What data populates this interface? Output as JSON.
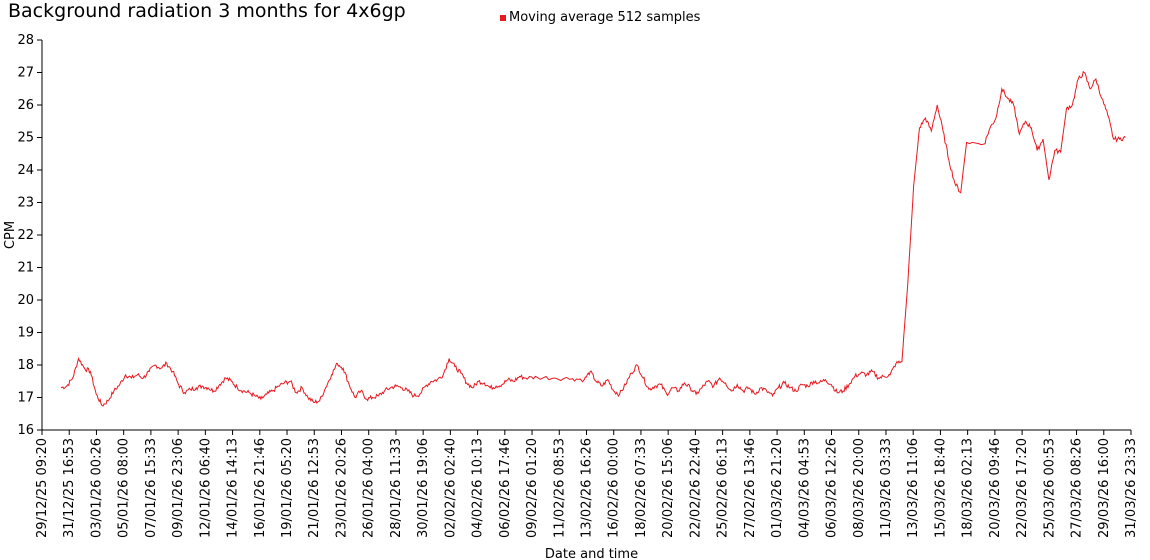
{
  "colors": {
    "series": "#e8191f",
    "axis": "#000000",
    "background": "#ffffff"
  },
  "chart_data": {
    "type": "line",
    "title": "Background radiation 3 months for 4x6gp",
    "xlabel": "Date and time",
    "ylabel": "CPM",
    "ylim": [
      16,
      28
    ],
    "yticks": [
      16,
      17,
      18,
      19,
      20,
      21,
      22,
      23,
      24,
      25,
      26,
      27,
      28
    ],
    "xlim": [
      "29/12/25 09:20",
      "31/03/26 23:33"
    ],
    "xticks": [
      "29/12/25 09:20",
      "31/12/25 16:53",
      "03/01/26 00:26",
      "05/01/26 08:00",
      "07/01/26 15:33",
      "09/01/26 23:06",
      "12/01/26 06:40",
      "14/01/26 14:13",
      "16/01/26 21:46",
      "19/01/26 05:20",
      "21/01/26 12:53",
      "23/01/26 20:26",
      "26/01/26 04:00",
      "28/01/26 11:33",
      "30/01/26 19:06",
      "02/02/26 02:40",
      "04/02/26 10:13",
      "06/02/26 17:46",
      "09/02/26 01:20",
      "11/02/26 08:53",
      "13/02/26 16:26",
      "16/02/26 00:00",
      "18/02/26 07:33",
      "20/02/26 15:06",
      "22/02/26 22:40",
      "25/02/26 06:13",
      "27/02/26 13:46",
      "01/03/26 21:20",
      "04/03/26 04:53",
      "06/03/26 12:26",
      "08/03/26 20:00",
      "11/03/26 03:33",
      "13/03/26 11:06",
      "15/03/26 18:40",
      "18/03/26 02:13",
      "20/03/26 09:46",
      "22/03/26 17:20",
      "25/03/26 00:53",
      "27/03/26 08:26",
      "29/03/26 16:00",
      "31/03/26 23:33"
    ],
    "grid": false,
    "legend_position": "top-center",
    "series": [
      {
        "name": "Moving average 512 samples",
        "points": [
          [
            "31/12/25 00:00",
            17.3
          ],
          [
            "31/12/25 12:00",
            17.35
          ],
          [
            "01/01/26 00:00",
            17.6
          ],
          [
            "01/01/26 12:00",
            18.2
          ],
          [
            "02/01/26 00:00",
            17.9
          ],
          [
            "02/01/26 12:00",
            17.8
          ],
          [
            "03/01/26 00:00",
            17.1
          ],
          [
            "03/01/26 12:00",
            16.75
          ],
          [
            "04/01/26 00:00",
            16.9
          ],
          [
            "04/01/26 12:00",
            17.2
          ],
          [
            "05/01/26 00:00",
            17.4
          ],
          [
            "05/01/26 12:00",
            17.7
          ],
          [
            "06/01/26 00:00",
            17.6
          ],
          [
            "06/01/26 12:00",
            17.7
          ],
          [
            "07/01/26 00:00",
            17.6
          ],
          [
            "07/01/26 12:00",
            17.8
          ],
          [
            "08/01/26 00:00",
            18.0
          ],
          [
            "08/01/26 12:00",
            17.9
          ],
          [
            "09/01/26 00:00",
            18.05
          ],
          [
            "09/01/26 12:00",
            17.8
          ],
          [
            "10/01/26 00:00",
            17.4
          ],
          [
            "10/01/26 12:00",
            17.15
          ],
          [
            "11/01/26 00:00",
            17.25
          ],
          [
            "11/01/26 12:00",
            17.3
          ],
          [
            "12/01/26 00:00",
            17.35
          ],
          [
            "12/01/26 12:00",
            17.3
          ],
          [
            "13/01/26 00:00",
            17.2
          ],
          [
            "13/01/26 12:00",
            17.4
          ],
          [
            "14/01/26 00:00",
            17.6
          ],
          [
            "14/01/26 12:00",
            17.5
          ],
          [
            "15/01/26 00:00",
            17.3
          ],
          [
            "15/01/26 12:00",
            17.2
          ],
          [
            "16/01/26 00:00",
            17.15
          ],
          [
            "16/01/26 12:00",
            17.05
          ],
          [
            "17/01/26 00:00",
            16.95
          ],
          [
            "17/01/26 12:00",
            17.1
          ],
          [
            "18/01/26 00:00",
            17.2
          ],
          [
            "18/01/26 12:00",
            17.35
          ],
          [
            "19/01/26 00:00",
            17.45
          ],
          [
            "19/01/26 12:00",
            17.5
          ],
          [
            "20/01/26 00:00",
            17.15
          ],
          [
            "20/01/26 12:00",
            17.3
          ],
          [
            "21/01/26 00:00",
            17.0
          ],
          [
            "21/01/26 12:00",
            16.85
          ],
          [
            "22/01/26 00:00",
            16.9
          ],
          [
            "22/01/26 12:00",
            17.3
          ],
          [
            "23/01/26 00:00",
            17.7
          ],
          [
            "23/01/26 12:00",
            18.05
          ],
          [
            "24/01/26 00:00",
            17.9
          ],
          [
            "24/01/26 12:00",
            17.4
          ],
          [
            "25/01/26 00:00",
            17.0
          ],
          [
            "25/01/26 12:00",
            17.2
          ],
          [
            "26/01/26 00:00",
            16.95
          ],
          [
            "26/01/26 12:00",
            17.0
          ],
          [
            "27/01/26 00:00",
            17.05
          ],
          [
            "27/01/26 12:00",
            17.2
          ],
          [
            "28/01/26 00:00",
            17.3
          ],
          [
            "28/01/26 12:00",
            17.35
          ],
          [
            "29/01/26 00:00",
            17.3
          ],
          [
            "29/01/26 12:00",
            17.2
          ],
          [
            "30/01/26 00:00",
            17.05
          ],
          [
            "30/01/26 12:00",
            17.1
          ],
          [
            "31/01/26 00:00",
            17.35
          ],
          [
            "31/01/26 12:00",
            17.5
          ],
          [
            "01/02/26 00:00",
            17.55
          ],
          [
            "01/02/26 12:00",
            17.7
          ],
          [
            "02/02/26 00:00",
            18.2
          ],
          [
            "02/02/26 12:00",
            17.95
          ],
          [
            "03/02/26 00:00",
            17.75
          ],
          [
            "03/02/26 12:00",
            17.45
          ],
          [
            "04/02/26 00:00",
            17.3
          ],
          [
            "04/02/26 12:00",
            17.5
          ],
          [
            "05/02/26 00:00",
            17.45
          ],
          [
            "05/02/26 12:00",
            17.3
          ],
          [
            "06/02/26 00:00",
            17.35
          ],
          [
            "06/02/26 12:00",
            17.4
          ],
          [
            "07/02/26 00:00",
            17.55
          ],
          [
            "07/02/26 12:00",
            17.5
          ],
          [
            "08/02/26 00:00",
            17.65
          ],
          [
            "08/02/26 12:00",
            17.6
          ],
          [
            "09/02/26 12:00",
            17.62
          ],
          [
            "11/02/26 00:00",
            17.6
          ],
          [
            "12/02/26 12:00",
            17.58
          ],
          [
            "13/02/26 12:00",
            17.55
          ],
          [
            "14/02/26 00:00",
            17.8
          ],
          [
            "14/02/26 12:00",
            17.5
          ],
          [
            "15/02/26 00:00",
            17.35
          ],
          [
            "15/02/26 12:00",
            17.55
          ],
          [
            "16/02/26 00:00",
            17.2
          ],
          [
            "16/02/26 12:00",
            17.1
          ],
          [
            "17/02/26 00:00",
            17.4
          ],
          [
            "17/02/26 12:00",
            17.75
          ],
          [
            "18/02/26 00:00",
            18.0
          ],
          [
            "18/02/26 12:00",
            17.6
          ],
          [
            "19/02/26 00:00",
            17.25
          ],
          [
            "19/02/26 12:00",
            17.35
          ],
          [
            "20/02/26 00:00",
            17.4
          ],
          [
            "20/02/26 12:00",
            17.1
          ],
          [
            "21/02/26 00:00",
            17.3
          ],
          [
            "21/02/26 12:00",
            17.2
          ],
          [
            "22/02/26 00:00",
            17.45
          ],
          [
            "22/02/26 12:00",
            17.3
          ],
          [
            "23/02/26 00:00",
            17.1
          ],
          [
            "23/02/26 12:00",
            17.3
          ],
          [
            "24/02/26 00:00",
            17.5
          ],
          [
            "24/02/26 12:00",
            17.35
          ],
          [
            "25/02/26 00:00",
            17.6
          ],
          [
            "25/02/26 12:00",
            17.45
          ],
          [
            "26/02/26 00:00",
            17.2
          ],
          [
            "26/02/26 12:00",
            17.4
          ],
          [
            "27/02/26 00:00",
            17.2
          ],
          [
            "27/02/26 12:00",
            17.3
          ],
          [
            "28/02/26 00:00",
            17.1
          ],
          [
            "28/02/26 12:00",
            17.3
          ],
          [
            "01/03/26 00:00",
            17.2
          ],
          [
            "01/03/26 12:00",
            17.05
          ],
          [
            "02/03/26 00:00",
            17.3
          ],
          [
            "02/03/26 12:00",
            17.45
          ],
          [
            "03/03/26 00:00",
            17.3
          ],
          [
            "03/03/26 12:00",
            17.2
          ],
          [
            "04/03/26 00:00",
            17.4
          ],
          [
            "04/03/26 12:00",
            17.35
          ],
          [
            "05/03/26 00:00",
            17.5
          ],
          [
            "05/03/26 12:00",
            17.45
          ],
          [
            "06/03/26 00:00",
            17.55
          ],
          [
            "06/03/26 12:00",
            17.4
          ],
          [
            "07/03/26 00:00",
            17.15
          ],
          [
            "07/03/26 12:00",
            17.2
          ],
          [
            "08/03/26 00:00",
            17.4
          ],
          [
            "08/03/26 12:00",
            17.65
          ],
          [
            "09/03/26 00:00",
            17.75
          ],
          [
            "09/03/26 12:00",
            17.7
          ],
          [
            "10/03/26 00:00",
            17.8
          ],
          [
            "10/03/26 12:00",
            17.6
          ],
          [
            "11/03/26 00:00",
            17.65
          ],
          [
            "11/03/26 12:00",
            17.7
          ],
          [
            "12/03/26 00:00",
            18.05
          ],
          [
            "12/03/26 12:00",
            18.1
          ],
          [
            "13/03/26 00:00",
            20.5
          ],
          [
            "13/03/26 12:00",
            23.5
          ],
          [
            "14/03/26 00:00",
            25.3
          ],
          [
            "14/03/26 12:00",
            25.6
          ],
          [
            "15/03/26 00:00",
            25.2
          ],
          [
            "15/03/26 12:00",
            26.0
          ],
          [
            "16/03/26 00:00",
            25.2
          ],
          [
            "16/03/26 12:00",
            24.3
          ],
          [
            "17/03/26 00:00",
            23.6
          ],
          [
            "17/03/26 12:00",
            23.3
          ],
          [
            "18/03/26 00:00",
            24.85
          ],
          [
            "19/03/26 12:00",
            24.8
          ],
          [
            "20/03/26 00:00",
            25.3
          ],
          [
            "20/03/26 12:00",
            25.6
          ],
          [
            "21/03/26 00:00",
            26.5
          ],
          [
            "21/03/26 12:00",
            26.2
          ],
          [
            "22/03/26 00:00",
            26.0
          ],
          [
            "22/03/26 12:00",
            25.1
          ],
          [
            "23/03/26 00:00",
            25.5
          ],
          [
            "23/03/26 12:00",
            25.3
          ],
          [
            "24/03/26 00:00",
            24.6
          ],
          [
            "24/03/26 12:00",
            24.95
          ],
          [
            "25/03/26 00:00",
            23.7
          ],
          [
            "25/03/26 12:00",
            24.6
          ],
          [
            "26/03/26 00:00",
            24.55
          ],
          [
            "26/03/26 12:00",
            25.9
          ],
          [
            "27/03/26 00:00",
            26.0
          ],
          [
            "27/03/26 12:00",
            26.8
          ],
          [
            "28/03/26 00:00",
            27.0
          ],
          [
            "28/03/26 12:00",
            26.5
          ],
          [
            "29/03/26 00:00",
            26.8
          ],
          [
            "29/03/26 12:00",
            26.2
          ],
          [
            "30/03/26 00:00",
            25.7
          ],
          [
            "30/03/26 12:00",
            24.95
          ],
          [
            "31/03/26 00:00",
            24.95
          ],
          [
            "31/03/26 12:00",
            25.0
          ]
        ]
      }
    ]
  }
}
